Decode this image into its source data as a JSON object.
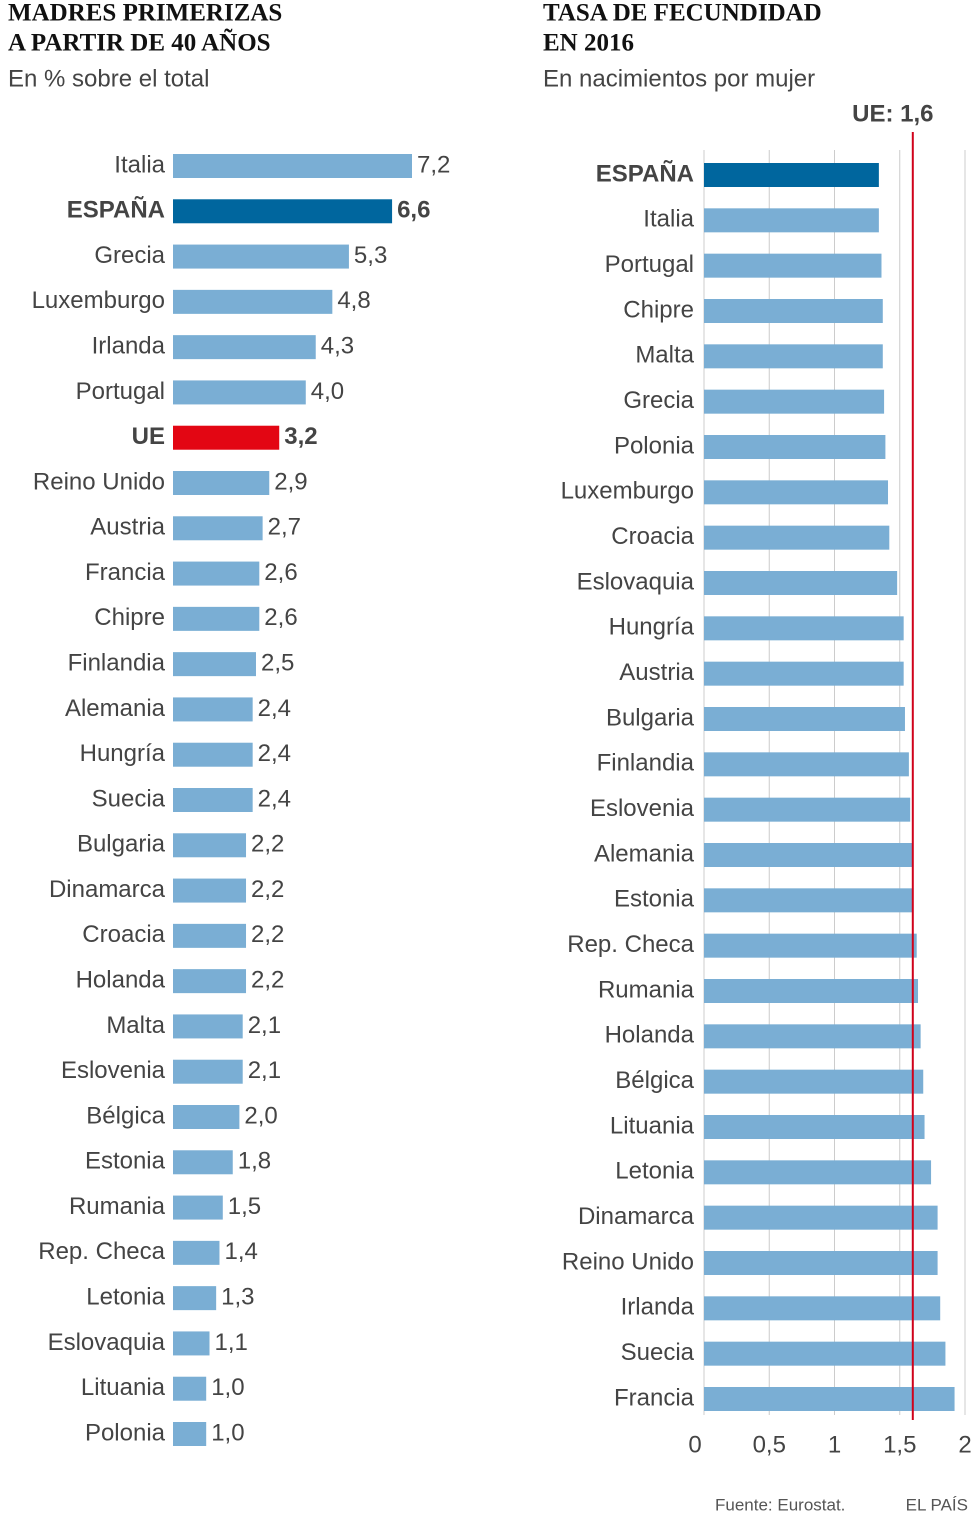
{
  "chart_data": [
    {
      "type": "bar",
      "orientation": "horizontal",
      "title": [
        "MADRES PRIMERIZAS",
        "A PARTIR DE 40 AÑOS"
      ],
      "subtitle": "En % sobre el total",
      "categories": [
        "Italia",
        "ESPAÑA",
        "Grecia",
        "Luxemburgo",
        "Irlanda",
        "Portugal",
        "UE",
        "Reino Unido",
        "Austria",
        "Francia",
        "Chipre",
        "Finlandia",
        "Alemania",
        "Hungría",
        "Suecia",
        "Bulgaria",
        "Dinamarca",
        "Croacia",
        "Holanda",
        "Malta",
        "Eslovenia",
        "Bélgica",
        "Estonia",
        "Rumania",
        "Rep. Checa",
        "Letonia",
        "Eslovaquia",
        "Lituania",
        "Polonia"
      ],
      "values": [
        7.2,
        6.6,
        5.3,
        4.8,
        4.3,
        4.0,
        3.2,
        2.9,
        2.7,
        2.6,
        2.6,
        2.5,
        2.4,
        2.4,
        2.4,
        2.2,
        2.2,
        2.2,
        2.2,
        2.1,
        2.1,
        2.0,
        1.8,
        1.5,
        1.4,
        1.3,
        1.1,
        1.0,
        1.0
      ],
      "value_labels": [
        "7,2",
        "6,6",
        "5,3",
        "4,8",
        "4,3",
        "4,0",
        "3,2",
        "2,9",
        "2,7",
        "2,6",
        "2,6",
        "2,5",
        "2,4",
        "2,4",
        "2,4",
        "2,2",
        "2,2",
        "2,2",
        "2,2",
        "2,1",
        "2,1",
        "2,0",
        "1,8",
        "1,5",
        "1,4",
        "1,3",
        "1,1",
        "1,0",
        "1,0"
      ],
      "color": "#7aaed4",
      "colors": [
        "#7aaed4",
        "#00669e",
        "#7aaed4",
        "#7aaed4",
        "#7aaed4",
        "#7aaed4",
        "#e30613",
        "#7aaed4",
        "#7aaed4",
        "#7aaed4",
        "#7aaed4",
        "#7aaed4",
        "#7aaed4",
        "#7aaed4",
        "#7aaed4",
        "#7aaed4",
        "#7aaed4",
        "#7aaed4",
        "#7aaed4",
        "#7aaed4",
        "#7aaed4",
        "#7aaed4",
        "#7aaed4",
        "#7aaed4",
        "#7aaed4",
        "#7aaed4",
        "#7aaed4",
        "#7aaed4",
        "#7aaed4"
      ],
      "xlim": [
        0,
        7.2
      ]
    },
    {
      "type": "bar",
      "orientation": "horizontal",
      "title": [
        "TASA DE FECUNDIDAD",
        "EN 2016"
      ],
      "subtitle": "En nacimientos por mujer",
      "categories": [
        "ESPAÑA",
        "Italia",
        "Portugal",
        "Chipre",
        "Malta",
        "Grecia",
        "Polonia",
        "Luxemburgo",
        "Croacia",
        "Eslovaquia",
        "Hungría",
        "Austria",
        "Bulgaria",
        "Finlandia",
        "Eslovenia",
        "Alemania",
        "Estonia",
        "Rep. Checa",
        "Rumania",
        "Holanda",
        "Bélgica",
        "Lituania",
        "Letonia",
        "Dinamarca",
        "Reino Unido",
        "Irlanda",
        "Suecia",
        "Francia"
      ],
      "values": [
        1.34,
        1.34,
        1.36,
        1.37,
        1.37,
        1.38,
        1.39,
        1.41,
        1.42,
        1.48,
        1.53,
        1.53,
        1.54,
        1.57,
        1.58,
        1.6,
        1.6,
        1.63,
        1.64,
        1.66,
        1.68,
        1.69,
        1.74,
        1.79,
        1.79,
        1.81,
        1.85,
        1.92
      ],
      "color": "#7aaed4",
      "colors": [
        "#00669e",
        "#7aaed4",
        "#7aaed4",
        "#7aaed4",
        "#7aaed4",
        "#7aaed4",
        "#7aaed4",
        "#7aaed4",
        "#7aaed4",
        "#7aaed4",
        "#7aaed4",
        "#7aaed4",
        "#7aaed4",
        "#7aaed4",
        "#7aaed4",
        "#7aaed4",
        "#7aaed4",
        "#7aaed4",
        "#7aaed4",
        "#7aaed4",
        "#7aaed4",
        "#7aaed4",
        "#7aaed4",
        "#7aaed4",
        "#7aaed4",
        "#7aaed4",
        "#7aaed4",
        "#7aaed4"
      ],
      "xlim": [
        0,
        2
      ],
      "xticks": [
        0,
        {
          "value": 0.5,
          "label": "0,5"
        },
        1,
        {
          "value": 1.5,
          "label": "1,5"
        },
        2
      ],
      "grid": true,
      "reference": {
        "value": 1.6,
        "label": "UE: 1,6",
        "color": "#d0021b"
      }
    }
  ],
  "footer": {
    "source": "Fuente: Eurostat.",
    "brand": "EL PAÍS"
  }
}
